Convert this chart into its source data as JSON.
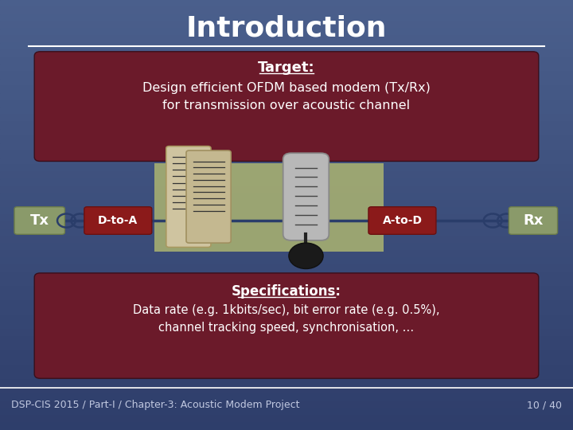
{
  "title": "Introduction",
  "bg_color": "#3d4f7c",
  "title_color": "#ffffff",
  "title_fontsize": 26,
  "separator_color": "#ffffff",
  "target_box_color": "#6b1a2a",
  "target_title": "Target:",
  "target_text1": "Design efficient OFDM based modem (Tx/Rx)",
  "target_text2": "for transmission over acoustic channel",
  "spec_box_color": "#6b1a2a",
  "spec_title": "Specifications:",
  "spec_text1": "Data rate (e.g. 1kbits/sec), bit error rate (e.g. 0.5%),",
  "spec_text2": "channel tracking speed, synchronisation, …",
  "tx_label": "Tx",
  "rx_label": "Rx",
  "dta_label": "D-to-A",
  "atd_label": "A-to-D",
  "box_color_tx_rx": "#8a9a6a",
  "box_color_dta_atd": "#8b1a1a",
  "channel_box_color": "#b0b870",
  "footer_left": "DSP-CIS 2015 / Part-I / Chapter-3: Acoustic Modem Project",
  "footer_right": "10 / 40",
  "footer_color": "#c0c8e0",
  "footer_fontsize": 9,
  "coil_color": "#2a3d6a",
  "line_color": "#2a3d6a"
}
